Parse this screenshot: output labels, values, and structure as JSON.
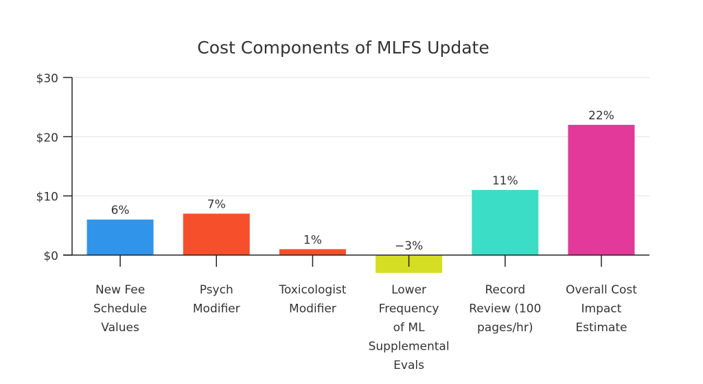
{
  "chart_data": {
    "type": "bar",
    "title": "Cost Components of MLFS Update",
    "xlabel": "",
    "ylabel": "",
    "ylim": [
      0,
      30
    ],
    "yticks": [
      "$0",
      "$10",
      "$20",
      "$30"
    ],
    "ytick_values": [
      0,
      10,
      20,
      30
    ],
    "grid": true,
    "categories": [
      [
        "New Fee",
        "Schedule",
        "Values"
      ],
      [
        "Psych",
        "Modifier"
      ],
      [
        "Toxicologist",
        "Modifier"
      ],
      [
        "Lower",
        "Frequency",
        "of ML",
        "Supplemental",
        "Evals"
      ],
      [
        "Record",
        "Review (100",
        "pages/hr)"
      ],
      [
        "Overall Cost",
        "Impact",
        "Estimate"
      ]
    ],
    "values": [
      6,
      7,
      1,
      -3,
      11,
      22
    ],
    "data_labels": [
      "6%",
      "7%",
      "1%",
      "−3%",
      "11%",
      "22%"
    ],
    "colors": [
      "#3094EA",
      "#F54F2B",
      "#F54F2B",
      "#D5DE22",
      "#3BDDC6",
      "#E2399A"
    ]
  }
}
